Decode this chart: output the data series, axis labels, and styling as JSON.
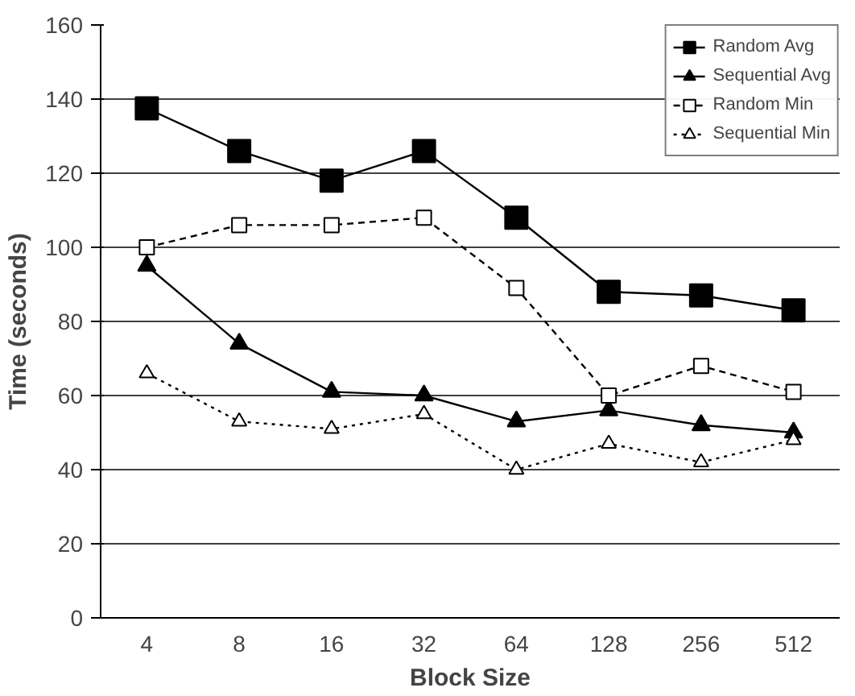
{
  "chart_data": {
    "type": "line",
    "xlabel": "Block Size",
    "ylabel": "Time (seconds)",
    "categories": [
      "4",
      "8",
      "16",
      "32",
      "64",
      "128",
      "256",
      "512"
    ],
    "series": [
      {
        "name": "Random Avg",
        "color": "#000000",
        "marker": "square",
        "line_style": "solid",
        "values": [
          137.5,
          126,
          118,
          126,
          108,
          88,
          87,
          83
        ]
      },
      {
        "name": "Sequential Avg",
        "color": "#000000",
        "marker": "triangle",
        "line_style": "solid",
        "values": [
          95,
          74,
          61,
          60,
          53,
          56,
          52,
          50
        ]
      },
      {
        "name": "Random Min",
        "color": "#000000",
        "marker": "square",
        "line_style": "dashed",
        "values": [
          100,
          106,
          106,
          108,
          89,
          60,
          68,
          61
        ]
      },
      {
        "name": "Sequential Min",
        "color": "#000000",
        "marker": "triangle",
        "line_style": "dotted",
        "values": [
          66,
          53,
          51,
          55,
          40,
          47,
          42,
          48
        ]
      }
    ],
    "ylim": [
      0,
      160
    ],
    "yticks": [
      0,
      20,
      40,
      60,
      80,
      100,
      120,
      140,
      160
    ],
    "grid": "y",
    "legend": "top right"
  }
}
